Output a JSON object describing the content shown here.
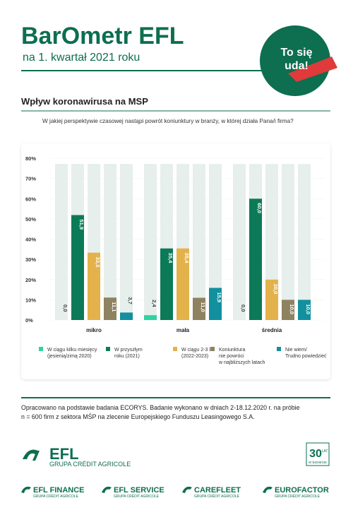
{
  "header": {
    "brand": "BarOmetr EFL",
    "subtitle": "na 1. kwartał 2021 roku",
    "badge": [
      "To się",
      "uda!"
    ]
  },
  "chart_data": {
    "type": "bar",
    "title": "Wpływ koronawirusa na MSP",
    "subtitle": "W jakiej perspektywie czasowej nastąpi powrót koniunktury w branży, w której działa Pana/i firma?",
    "categories": [
      "mikro",
      "mała",
      "średnia"
    ],
    "series": [
      {
        "name": "W ciągu kilku miesięcy\n(jesienią/zimą 2020)",
        "color": "#2ed3a3",
        "values": [
          0.0,
          2.4,
          0.0
        ],
        "value_labels": [
          "0,0",
          "2,4",
          "0,0"
        ]
      },
      {
        "name": "W przyszłym\nroku (2021)",
        "color": "#0d7a57",
        "values": [
          51.9,
          35.4,
          60.0
        ],
        "value_labels": [
          "51,9",
          "35,4",
          "60,0"
        ]
      },
      {
        "name": "W ciągu 2-3 lat\n(2022-2023)",
        "color": "#e4b24a",
        "values": [
          33.3,
          35.4,
          20.0
        ],
        "value_labels": [
          "33,3",
          "35,4",
          "20,0"
        ]
      },
      {
        "name": "Koniunktura\nnie powróci\nw najbliższych latach",
        "color": "#8e8260",
        "values": [
          11.1,
          11.0,
          10.0
        ],
        "value_labels": [
          "11,1",
          "11,0",
          "10,0"
        ]
      },
      {
        "name": "Nie wiem/\nTrudno powiedzieć",
        "color": "#12909e",
        "values": [
          3.7,
          15.9,
          10.0
        ],
        "value_labels": [
          "3,7",
          "15,9",
          "10,0"
        ]
      }
    ],
    "ylim": [
      0,
      80
    ],
    "yticks": [
      {
        "value": 0,
        "label": "0%"
      },
      {
        "value": 10,
        "label": "10%"
      },
      {
        "value": 20,
        "label": "20%"
      },
      {
        "value": 30,
        "label": "30%"
      },
      {
        "value": 40,
        "label": "40%"
      },
      {
        "value": 50,
        "label": "50%"
      },
      {
        "value": 60,
        "label": "60%"
      },
      {
        "value": 70,
        "label": "70%"
      },
      {
        "value": 80,
        "label": "80%"
      }
    ]
  },
  "footer": {
    "note": [
      "Opracowano na podstawie badania ECORYS. Badanie wykonano w dniach 2-18.12.2020 r. na próbie",
      "n = 600 firm z sektora MŚP na zlecenie Europejskiego Funduszu Leasingowego S.A."
    ],
    "logo": {
      "name": "EFL",
      "group": "GRUPA CRÉDIT AGRICOLE"
    },
    "anniversary": [
      "30",
      "LAT",
      "W BIZNESIE"
    ],
    "brands": [
      {
        "name": "EFL FINANCE",
        "group": "GRUPA CRÉDIT AGRICOLE"
      },
      {
        "name": "EFL SERVICE",
        "group": "GRUPA CRÉDIT AGRICOLE"
      },
      {
        "name": "CAREFLEET",
        "group": "GRUPA CRÉDIT AGRICOLE"
      },
      {
        "name": "EUROFACTOR",
        "group": "GRUPA CRÉDIT AGRICOLE"
      }
    ]
  }
}
